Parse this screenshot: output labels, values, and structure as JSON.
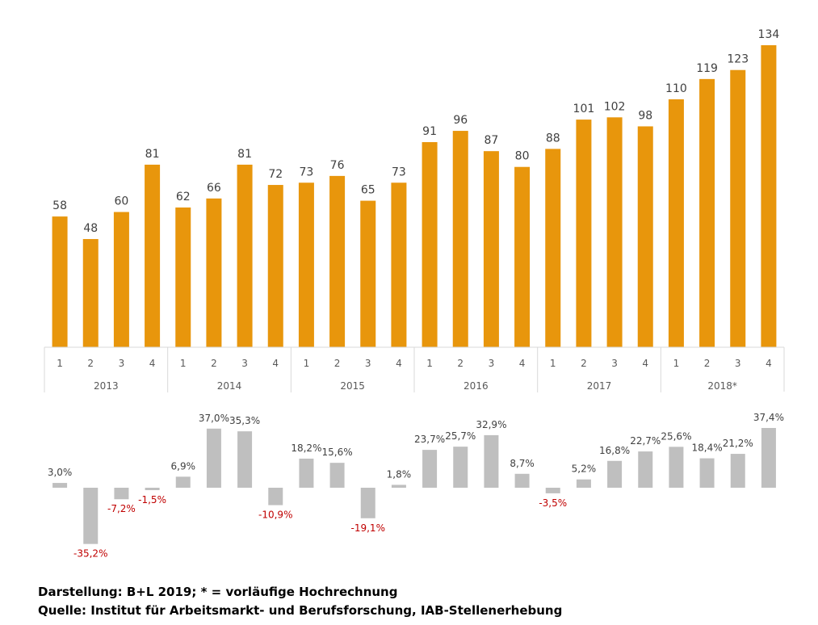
{
  "chart_data": [
    {
      "type": "bar",
      "quarters": [
        "1",
        "2",
        "3",
        "4",
        "1",
        "2",
        "3",
        "4",
        "1",
        "2",
        "3",
        "4",
        "1",
        "2",
        "3",
        "4",
        "1",
        "2",
        "3",
        "4",
        "1",
        "2",
        "3",
        "4"
      ],
      "years": [
        "2013",
        "2014",
        "2015",
        "2016",
        "2017",
        "2018*"
      ],
      "values": [
        58,
        48,
        60,
        81,
        62,
        66,
        81,
        72,
        73,
        76,
        65,
        73,
        91,
        96,
        87,
        80,
        88,
        101,
        102,
        98,
        110,
        119,
        123,
        134
      ],
      "value_labels": [
        "58",
        "48",
        "60",
        "81",
        "62",
        "66",
        "81",
        "72",
        "73",
        "76",
        "65",
        "73",
        "91",
        "96",
        "87",
        "80",
        "88",
        "101",
        "102",
        "98",
        "110",
        "119",
        "123",
        "134"
      ],
      "ylim": [
        0,
        140
      ],
      "color": "#E8960C"
    },
    {
      "type": "bar",
      "values": [
        3.0,
        -35.2,
        -7.2,
        -1.5,
        6.9,
        37.0,
        35.3,
        -10.9,
        18.2,
        15.6,
        -19.1,
        1.8,
        23.7,
        25.7,
        32.9,
        8.7,
        -3.5,
        5.2,
        16.8,
        22.7,
        25.6,
        18.4,
        21.2,
        37.4
      ],
      "value_labels": [
        "3,0%",
        "-35,2%",
        "-7,2%",
        "-1,5%",
        "6,9%",
        "37,0%",
        "35,3%",
        "-10,9%",
        "18,2%",
        "15,6%",
        "-19,1%",
        "1,8%",
        "23,7%",
        "25,7%",
        "32,9%",
        "8,7%",
        "-3,5%",
        "5,2%",
        "16,8%",
        "22,7%",
        "25,6%",
        "18,4%",
        "21,2%",
        "37,4%"
      ],
      "ylim": [
        -40,
        40
      ],
      "color": "#BFBFBF",
      "positive_label_color": "#404040",
      "negative_label_color": "#C00000"
    }
  ],
  "footer": {
    "line1": "Darstellung: B+L 2019; * = vorläufige Hochrechnung",
    "line2": "Quelle: Institut für Arbeitsmarkt- und Berufsforschung, IAB-Stellenerhebung"
  }
}
